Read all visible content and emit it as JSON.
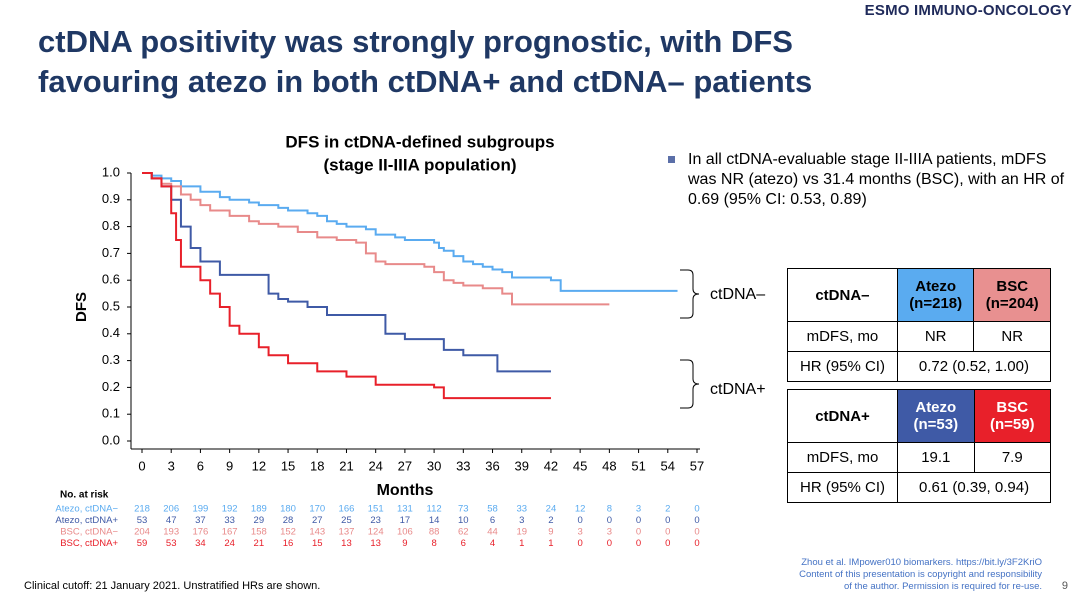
{
  "header": {
    "logo": "ESMO IMMUNO-ONCOLOGY",
    "title_lines": [
      "ctDNA positivity was strongly prognostic, with DFS",
      "favouring atezo in both ctDNA+ and ctDNA– patients"
    ]
  },
  "chart_data": {
    "type": "step",
    "title_lines": [
      "DFS in ctDNA-defined subgroups",
      "(stage II-IIIA population)"
    ],
    "xlabel": "Months",
    "ylabel": "DFS",
    "xlim": [
      0,
      57
    ],
    "xticks": [
      0,
      3,
      6,
      9,
      12,
      15,
      18,
      21,
      24,
      27,
      30,
      33,
      36,
      39,
      42,
      45,
      48,
      51,
      54,
      57
    ],
    "ylim": [
      0,
      1
    ],
    "yticks": [
      {
        "value": 0,
        "label": "0.0"
      },
      0.1,
      0.2,
      0.3,
      0.4,
      0.5,
      0.6,
      0.7,
      0.8,
      0.9,
      {
        "value": 1,
        "label": "1.0"
      }
    ],
    "risk_title": "No. at risk",
    "series": [
      {
        "name": "Atezo, ctDNA−",
        "color": "#5aabf0",
        "x": [
          0,
          1,
          2,
          3,
          4,
          6,
          8,
          9,
          11,
          12,
          14,
          15,
          17,
          18,
          19,
          20,
          21,
          23,
          24,
          26,
          27,
          29,
          30,
          30.5,
          31,
          32,
          33,
          34,
          35,
          36,
          37,
          38,
          40,
          42,
          43,
          55
        ],
        "values": [
          1,
          0.99,
          0.98,
          0.97,
          0.95,
          0.93,
          0.91,
          0.9,
          0.89,
          0.88,
          0.87,
          0.86,
          0.85,
          0.84,
          0.82,
          0.81,
          0.8,
          0.79,
          0.77,
          0.76,
          0.75,
          0.75,
          0.74,
          0.72,
          0.71,
          0.69,
          0.67,
          0.66,
          0.65,
          0.64,
          0.63,
          0.61,
          0.61,
          0.6,
          0.56,
          0.56
        ],
        "at_risk": [
          218,
          206,
          199,
          192,
          189,
          180,
          170,
          166,
          151,
          131,
          112,
          73,
          58,
          33,
          24,
          12,
          8,
          3,
          2,
          0
        ]
      },
      {
        "name": "BSC, ctDNA−",
        "color": "#e88a8a",
        "x": [
          0,
          1,
          2,
          3,
          4,
          5,
          6,
          7,
          9,
          11,
          12,
          14,
          16,
          18,
          20,
          22,
          23,
          24,
          25,
          27,
          29,
          30,
          31,
          32,
          33,
          35,
          37,
          38,
          48
        ],
        "values": [
          1,
          0.98,
          0.96,
          0.95,
          0.92,
          0.9,
          0.88,
          0.86,
          0.84,
          0.82,
          0.81,
          0.8,
          0.78,
          0.76,
          0.75,
          0.74,
          0.7,
          0.67,
          0.66,
          0.66,
          0.65,
          0.63,
          0.6,
          0.59,
          0.58,
          0.57,
          0.55,
          0.51,
          0.51
        ],
        "at_risk": [
          204,
          193,
          176,
          167,
          158,
          152,
          143,
          137,
          124,
          106,
          88,
          62,
          44,
          19,
          9,
          3,
          3,
          0,
          0,
          0
        ]
      },
      {
        "name": "Atezo, ctDNA+",
        "color": "#3f5aa6",
        "x": [
          0,
          1,
          2,
          3,
          4,
          5,
          6,
          8,
          12,
          13,
          14,
          15,
          17,
          19,
          24,
          25,
          27,
          30,
          31,
          33,
          36,
          36.5,
          42
        ],
        "values": [
          1,
          0.98,
          0.95,
          0.9,
          0.8,
          0.72,
          0.67,
          0.62,
          0.62,
          0.55,
          0.53,
          0.52,
          0.5,
          0.47,
          0.47,
          0.4,
          0.38,
          0.38,
          0.34,
          0.32,
          0.32,
          0.26,
          0.26
        ],
        "at_risk": [
          53,
          47,
          37,
          33,
          29,
          28,
          27,
          25,
          23,
          17,
          14,
          10,
          6,
          3,
          2,
          0,
          0,
          0,
          0,
          0
        ]
      },
      {
        "name": "BSC, ctDNA+",
        "color": "#e8202a",
        "x": [
          0,
          1,
          2,
          3,
          3.5,
          4,
          6,
          7,
          8,
          9,
          10,
          12,
          13,
          15,
          18,
          21,
          24,
          30,
          31,
          42
        ],
        "values": [
          1,
          0.98,
          0.95,
          0.85,
          0.75,
          0.65,
          0.6,
          0.55,
          0.5,
          0.43,
          0.4,
          0.35,
          0.32,
          0.29,
          0.26,
          0.24,
          0.21,
          0.2,
          0.16,
          0.16
        ],
        "at_risk": [
          59,
          53,
          34,
          24,
          21,
          16,
          15,
          13,
          13,
          9,
          8,
          6,
          4,
          1,
          1,
          0,
          0,
          0,
          0,
          0
        ]
      }
    ],
    "risk_order": [
      0,
      2,
      1,
      3
    ],
    "annotations": [
      "ctDNA–",
      "ctDNA+"
    ]
  },
  "bullet": "In all ctDNA-evaluable stage II-IIIA patients, mDFS was NR (atezo) vs 31.4 months (BSC), with an HR of 0.69 (95% CI: 0.53, 0.89)",
  "tables": [
    {
      "header": [
        "ctDNA–",
        [
          "Atezo",
          "(n=218)"
        ],
        [
          "BSC",
          "(n=204)"
        ]
      ],
      "rows": [
        [
          "mDFS, mo",
          "NR",
          "NR"
        ],
        [
          "HR (95% CI)",
          "0.72 (0.52, 1.00)"
        ]
      ]
    },
    {
      "header": [
        "ctDNA+",
        [
          "Atezo",
          "(n=53)"
        ],
        [
          "BSC",
          "(n=59)"
        ]
      ],
      "rows": [
        [
          "mDFS, mo",
          "19.1",
          "7.9"
        ],
        [
          "HR (95% CI)",
          "0.61 (0.39, 0.94)"
        ]
      ]
    }
  ],
  "footer": {
    "note": "Clinical cutoff: 21 January 2021. Unstratified HRs are shown.",
    "citation": [
      "Zhou et al. IMpower010 biomarkers. https://bit.ly/3F2KriO",
      "Content of this presentation is copyright  and responsibility",
      "of the author. Permission is required for re-use."
    ],
    "page": "9"
  }
}
